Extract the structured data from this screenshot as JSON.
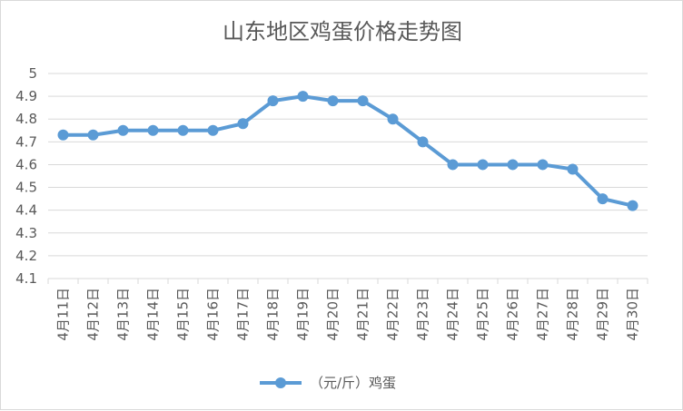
{
  "chart_data": {
    "type": "line",
    "title": "山东地区鸡蛋价格走势图",
    "categories": [
      "4月11日",
      "4月12日",
      "4月13日",
      "4月14日",
      "4月15日",
      "4月16日",
      "4月17日",
      "4月18日",
      "4月19日",
      "4月20日",
      "4月21日",
      "4月22日",
      "4月23日",
      "4月24日",
      "4月25日",
      "4月26日",
      "4月27日",
      "4月28日",
      "4月29日",
      "4月30日"
    ],
    "series": [
      {
        "name": "（元/斤）鸡蛋",
        "values": [
          4.73,
          4.73,
          4.75,
          4.75,
          4.75,
          4.75,
          4.78,
          4.88,
          4.9,
          4.88,
          4.88,
          4.8,
          4.7,
          4.6,
          4.6,
          4.6,
          4.6,
          4.58,
          4.45,
          4.42
        ]
      }
    ],
    "ylim": [
      4.1,
      5
    ],
    "yticks": [
      "4.1",
      "4.2",
      "4.3",
      "4.4",
      "4.5",
      "4.6",
      "4.7",
      "4.8",
      "4.9",
      "5"
    ],
    "grid": true,
    "legend": "bottom",
    "colors": {
      "line": "#5b9bd5",
      "grid": "#d9d9d9",
      "text": "#595959"
    }
  }
}
